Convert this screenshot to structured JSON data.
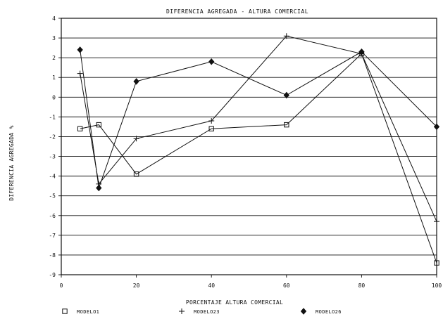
{
  "chart_data": {
    "type": "line",
    "title": "DIFERENCIA AGREGADA - ALTURA COMERCIAL",
    "xlabel": "PORCENTAJE ALTURA COMERCIAL",
    "ylabel": "DIFERENCIA AGREGADA %",
    "xlim": [
      0,
      100
    ],
    "ylim": [
      -9,
      4
    ],
    "x_ticks": [
      0,
      20,
      40,
      60,
      80,
      100
    ],
    "x_tick_labels": [
      "0",
      "20",
      "40",
      "60",
      "80",
      "100"
    ],
    "y_ticks": [
      4,
      3,
      2,
      1,
      0,
      -1,
      -2,
      -3,
      -4,
      -5,
      -6,
      -7,
      -8,
      -9
    ],
    "y_tick_labels": [
      "4",
      "3",
      "2",
      "1",
      "0",
      "-1",
      "-2",
      "-3",
      "-4",
      "-5",
      "-6",
      "-7",
      "-8",
      "-9"
    ],
    "grid": "horizontal",
    "legend_position": "bottom",
    "series": [
      {
        "name": "MODELO1",
        "marker": "square",
        "x": [
          5,
          10,
          20,
          40,
          60,
          80,
          100
        ],
        "y": [
          -1.6,
          -1.4,
          -3.9,
          -1.6,
          -1.4,
          2.2,
          -8.4
        ]
      },
      {
        "name": "MODELO23",
        "marker": "plus",
        "x": [
          5,
          10,
          20,
          40,
          60,
          80,
          100
        ],
        "y": [
          1.2,
          -4.4,
          -2.1,
          -1.2,
          3.1,
          2.2,
          -6.3
        ]
      },
      {
        "name": "MODELO26",
        "marker": "diamond",
        "x": [
          5,
          10,
          20,
          40,
          60,
          80,
          100
        ],
        "y": [
          2.4,
          -4.6,
          0.8,
          1.8,
          0.1,
          2.3,
          -1.5
        ]
      }
    ]
  }
}
